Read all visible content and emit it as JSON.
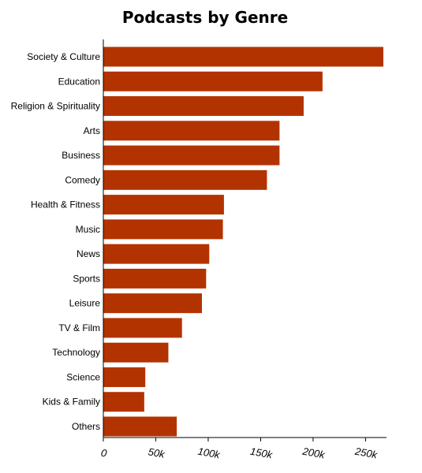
{
  "chart_data": {
    "type": "bar",
    "orientation": "horizontal",
    "title": "Podcasts by Genre",
    "xlabel": "",
    "ylabel": "",
    "categories": [
      "Society & Culture",
      "Education",
      "Religion & Spirituality",
      "Arts",
      "Business",
      "Comedy",
      "Health & Fitness",
      "Music",
      "News",
      "Sports",
      "Leisure",
      "TV & Film",
      "Technology",
      "Science",
      "Kids & Family",
      "Others"
    ],
    "values": [
      267000,
      209000,
      191000,
      168000,
      168000,
      156000,
      115000,
      114000,
      101000,
      98000,
      94000,
      75000,
      62000,
      40000,
      39000,
      70000
    ],
    "xlim": [
      0,
      270000
    ],
    "x_ticks": [
      0,
      50000,
      100000,
      150000,
      200000,
      250000
    ],
    "x_tick_labels": [
      "0",
      "50k",
      "100k",
      "150k",
      "200k",
      "250k"
    ],
    "bar_color": "#b33300",
    "axis_color": "#000000",
    "grid": false,
    "legend": "none"
  }
}
